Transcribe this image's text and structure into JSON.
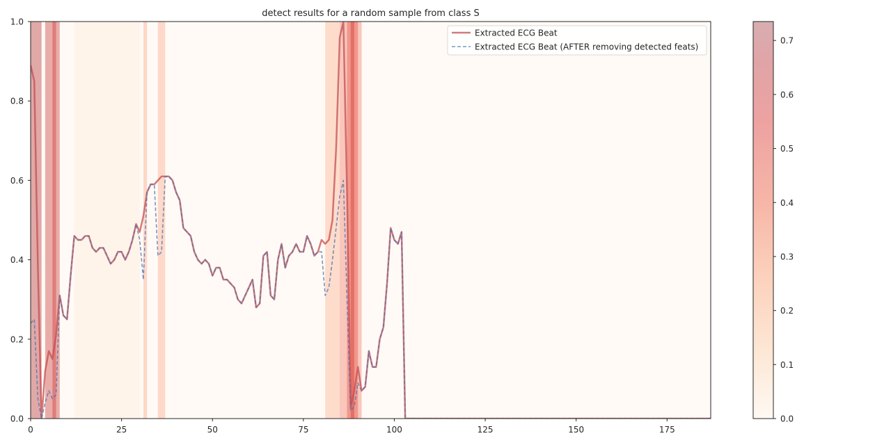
{
  "chart_data": {
    "type": "line",
    "title": "detect results for a random sample from class S",
    "xlabel": "",
    "ylabel": "",
    "xlim": [
      0,
      187
    ],
    "ylim": [
      0.0,
      1.0
    ],
    "x_ticks": [
      0,
      25,
      50,
      75,
      100,
      125,
      150,
      175
    ],
    "y_ticks": [
      0.0,
      0.2,
      0.4,
      0.6,
      0.8,
      1.0
    ],
    "grid": false,
    "legend_position": "upper right",
    "series": [
      {
        "name": "Extracted ECG Beat",
        "color": "#c44e52",
        "style": "solid",
        "values": [
          0.89,
          0.85,
          0.38,
          0.0,
          0.12,
          0.17,
          0.15,
          0.21,
          0.31,
          0.26,
          0.25,
          0.36,
          0.46,
          0.45,
          0.45,
          0.46,
          0.46,
          0.43,
          0.42,
          0.43,
          0.43,
          0.41,
          0.39,
          0.4,
          0.42,
          0.42,
          0.4,
          0.42,
          0.45,
          0.49,
          0.47,
          0.51,
          0.57,
          0.59,
          0.59,
          0.6,
          0.61,
          0.61,
          0.61,
          0.6,
          0.57,
          0.55,
          0.48,
          0.47,
          0.46,
          0.42,
          0.4,
          0.39,
          0.4,
          0.39,
          0.36,
          0.38,
          0.38,
          0.35,
          0.35,
          0.34,
          0.33,
          0.3,
          0.29,
          0.31,
          0.33,
          0.35,
          0.28,
          0.29,
          0.41,
          0.42,
          0.31,
          0.3,
          0.4,
          0.44,
          0.38,
          0.41,
          0.42,
          0.44,
          0.42,
          0.42,
          0.46,
          0.44,
          0.41,
          0.42,
          0.45,
          0.44,
          0.45,
          0.5,
          0.68,
          0.96,
          1.0,
          0.57,
          0.03,
          0.07,
          0.13,
          0.07,
          0.08,
          0.17,
          0.13,
          0.13,
          0.2,
          0.23,
          0.34,
          0.48,
          0.45,
          0.44,
          0.47,
          0.0,
          0.0,
          0.0,
          0.0,
          0.0,
          0.0,
          0.0,
          0.0,
          0.0,
          0.0,
          0.0,
          0.0,
          0.0,
          0.0,
          0.0,
          0.0,
          0.0,
          0.0,
          0.0,
          0.0,
          0.0,
          0.0,
          0.0,
          0.0,
          0.0,
          0.0,
          0.0,
          0.0,
          0.0,
          0.0,
          0.0,
          0.0,
          0.0,
          0.0,
          0.0,
          0.0,
          0.0,
          0.0,
          0.0,
          0.0,
          0.0,
          0.0,
          0.0,
          0.0,
          0.0,
          0.0,
          0.0,
          0.0,
          0.0,
          0.0,
          0.0,
          0.0,
          0.0,
          0.0,
          0.0,
          0.0,
          0.0,
          0.0,
          0.0,
          0.0,
          0.0,
          0.0,
          0.0,
          0.0,
          0.0,
          0.0,
          0.0,
          0.0,
          0.0,
          0.0,
          0.0,
          0.0,
          0.0,
          0.0,
          0.0,
          0.0,
          0.0,
          0.0,
          0.0,
          0.0,
          0.0,
          0.0,
          0.0,
          0.0,
          0.0,
          0.0,
          0.0,
          0.0,
          0.0
        ]
      },
      {
        "name": "Extracted ECG Beat (AFTER removing detected feats)",
        "color": "#4c72b0",
        "style": "dashed",
        "overrides": {
          "0": 0.24,
          "1": 0.25,
          "2": 0.05,
          "3": 0.0,
          "4": 0.04,
          "5": 0.07,
          "6": 0.05,
          "7": 0.06,
          "30": 0.45,
          "31": 0.35,
          "35": 0.41,
          "36": 0.42,
          "80": 0.42,
          "81": 0.31,
          "82": 0.33,
          "83": 0.4,
          "84": 0.48,
          "85": 0.56,
          "86": 0.6,
          "87": 0.3,
          "88": 0.02,
          "89": 0.03,
          "90": 0.09,
          "91": 0.07
        }
      }
    ],
    "heat_bands": [
      {
        "x0": 0,
        "x1": 3,
        "value": 0.74
      },
      {
        "x0": 4,
        "x1": 8,
        "value": 0.65
      },
      {
        "x0": 6,
        "x1": 7,
        "value": 0.6
      },
      {
        "x0": 12,
        "x1": 30,
        "value": 0.06
      },
      {
        "x0": 31,
        "x1": 32,
        "value": 0.36
      },
      {
        "x0": 35,
        "x1": 37,
        "value": 0.35
      },
      {
        "x0": 81,
        "x1": 85,
        "value": 0.32
      },
      {
        "x0": 85,
        "x1": 91,
        "value": 0.45
      },
      {
        "x0": 87,
        "x1": 90,
        "value": 0.52
      },
      {
        "x0": 88,
        "x1": 89,
        "value": 0.6
      }
    ],
    "colorbar": {
      "min": 0.0,
      "max": 0.735,
      "ticks": [
        0.0,
        0.1,
        0.2,
        0.3,
        0.4,
        0.5,
        0.6,
        0.7
      ],
      "colormap": "Reds",
      "alpha": 0.35
    }
  }
}
